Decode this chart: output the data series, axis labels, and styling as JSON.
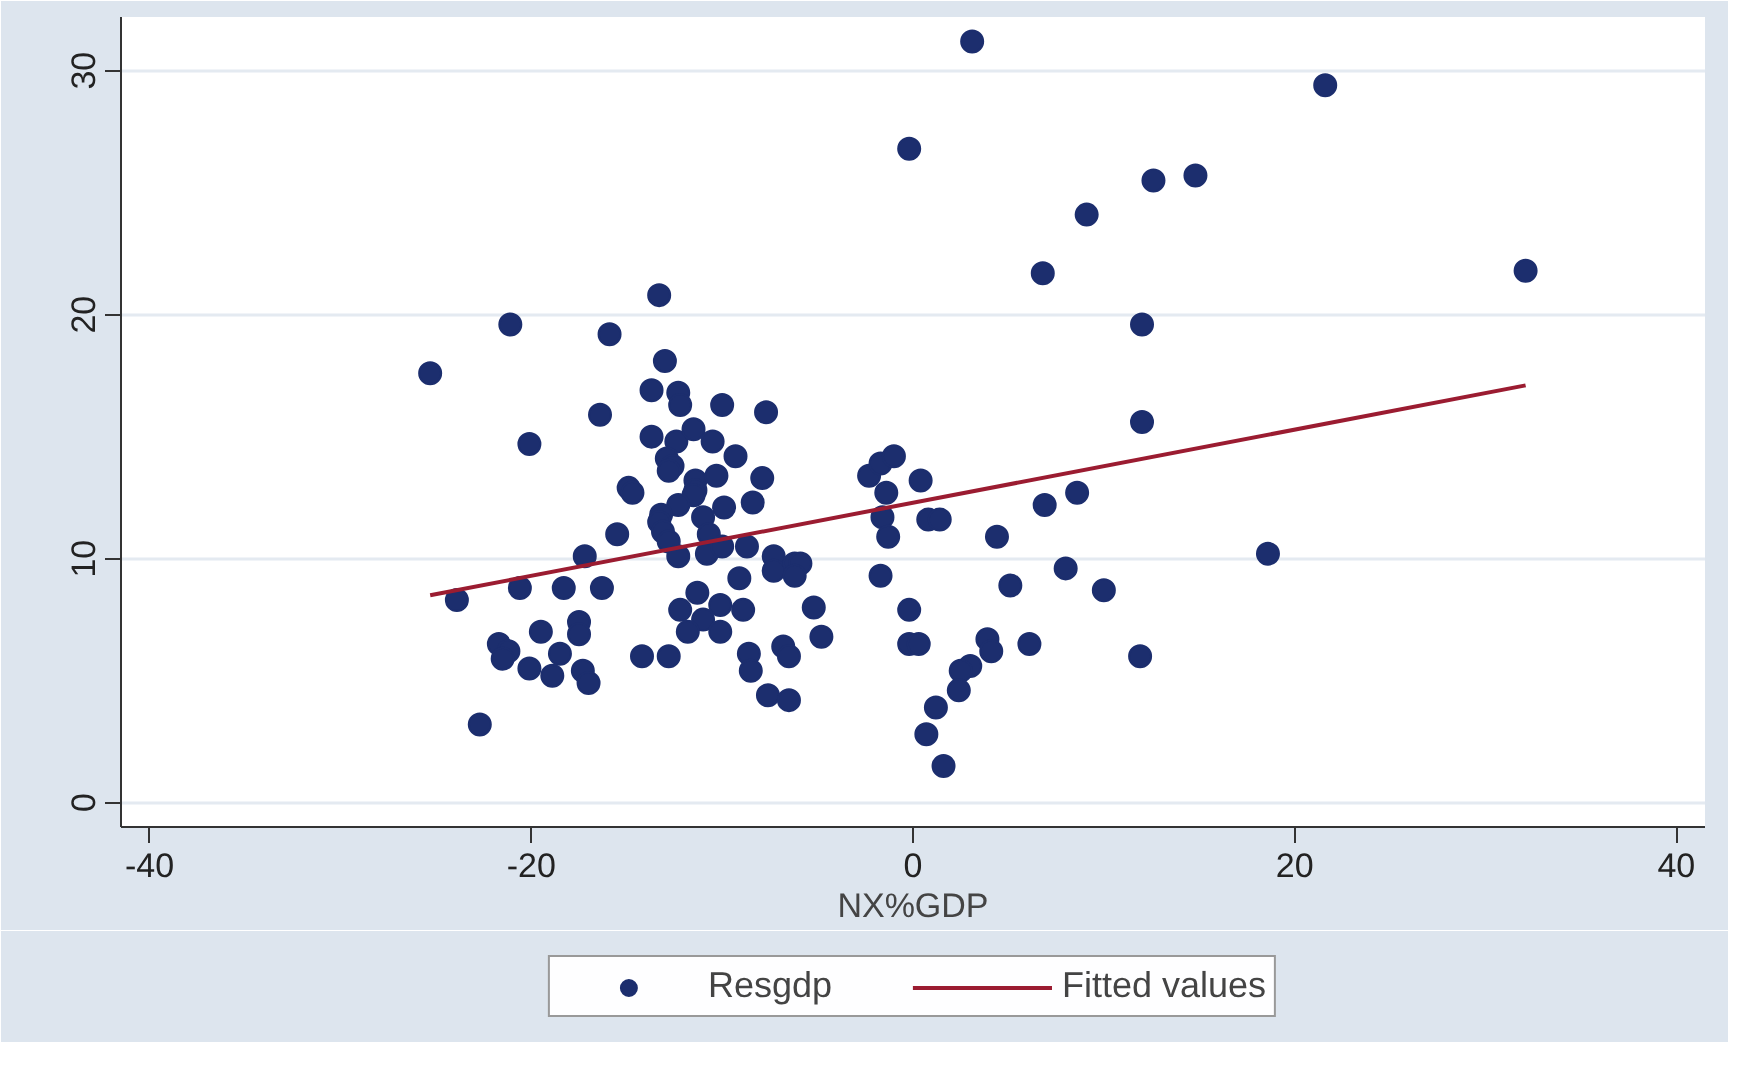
{
  "chart_data": {
    "type": "scatter",
    "xlabel": "NX%GDP",
    "xlim": [
      -41.5,
      41.5
    ],
    "ylim": [
      -1,
      32.2
    ],
    "xticks": [
      -40,
      -20,
      0,
      20,
      40
    ],
    "yticks": [
      0,
      10,
      20,
      30
    ],
    "grid": "y",
    "legend": "bottom",
    "series": [
      {
        "name": "Resgdp",
        "marker": "circle",
        "color": "#1c2e6e",
        "x": [
          -13.3,
          -21.1,
          -15.9,
          -25.3,
          -13.0,
          -13.7,
          -12.3,
          -12.2,
          -10.0,
          -7.7,
          -16.4,
          -20.1,
          -13.7,
          -12.4,
          -11.5,
          -10.5,
          -9.3,
          -12.9,
          -12.6,
          -12.8,
          -11.4,
          -11.4,
          -11.5,
          -10.3,
          -7.9,
          -14.9,
          -14.7,
          -12.3,
          -9.9,
          -8.4,
          -13.2,
          -13.3,
          -13.1,
          -12.8,
          -11.0,
          -15.5,
          -10.7,
          -10.8,
          -12.3,
          -10.0,
          -8.7,
          -17.2,
          -7.3,
          -7.3,
          -6.2,
          -5.9,
          -6.2,
          -9.1,
          -20.6,
          -18.3,
          -16.3,
          -23.9,
          -11.3,
          -12.2,
          -10.1,
          -8.9,
          -11.0,
          -5.2,
          -19.5,
          -17.5,
          -17.5,
          -11.8,
          -10.1,
          -4.8,
          -21.7,
          -21.2,
          -21.5,
          -18.5,
          -20.1,
          -18.9,
          -17.3,
          -17.0,
          -14.2,
          -12.8,
          -8.6,
          -8.5,
          -6.8,
          -6.5,
          -7.6,
          -6.5,
          -22.7,
          3.1,
          21.6,
          -0.2,
          12.6,
          14.8,
          9.1,
          6.8,
          32.1,
          12.0,
          12.0,
          -2.3,
          -1.7,
          -1.0,
          0.4,
          -1.4,
          -1.6,
          0.8,
          1.4,
          -1.3,
          6.9,
          8.6,
          4.4,
          18.6,
          -1.7,
          8.0,
          5.1,
          10.0,
          -0.2,
          -0.2,
          0.3,
          3.9,
          4.1,
          6.1,
          11.9,
          3.0,
          2.5,
          2.4,
          1.2,
          0.7,
          1.6
        ],
        "values": [
          20.8,
          19.6,
          19.2,
          17.6,
          18.1,
          16.9,
          16.8,
          16.3,
          16.3,
          16.0,
          15.9,
          14.7,
          15.0,
          14.8,
          15.3,
          14.8,
          14.2,
          14.1,
          13.8,
          13.6,
          13.2,
          12.8,
          12.6,
          13.4,
          13.3,
          12.9,
          12.7,
          12.2,
          12.1,
          12.3,
          11.8,
          11.5,
          11.1,
          10.7,
          11.7,
          11.0,
          11.0,
          10.2,
          10.1,
          10.5,
          10.5,
          10.1,
          10.1,
          9.5,
          9.8,
          9.8,
          9.3,
          9.2,
          8.8,
          8.8,
          8.8,
          8.3,
          8.6,
          7.9,
          8.1,
          7.9,
          7.5,
          8.0,
          7.0,
          7.4,
          6.9,
          7.0,
          7.0,
          6.8,
          6.5,
          6.2,
          5.9,
          6.1,
          5.5,
          5.2,
          5.4,
          4.9,
          6.0,
          6.0,
          6.1,
          5.4,
          6.4,
          6.0,
          4.4,
          4.2,
          3.2,
          31.2,
          29.4,
          26.8,
          25.5,
          25.7,
          24.1,
          21.7,
          21.8,
          19.6,
          15.6,
          13.4,
          13.9,
          14.2,
          13.2,
          12.7,
          11.7,
          11.6,
          11.6,
          10.9,
          12.2,
          12.7,
          10.9,
          10.2,
          9.3,
          9.6,
          8.9,
          8.7,
          7.9,
          6.5,
          6.5,
          6.7,
          6.2,
          6.5,
          6.0,
          5.6,
          5.4,
          4.6,
          3.9,
          2.8,
          1.5
        ]
      },
      {
        "name": "Fitted values",
        "type": "line",
        "color": "#9b1c31",
        "x": [
          -25.3,
          32.1
        ],
        "values": [
          8.5,
          17.1
        ]
      }
    ]
  }
}
